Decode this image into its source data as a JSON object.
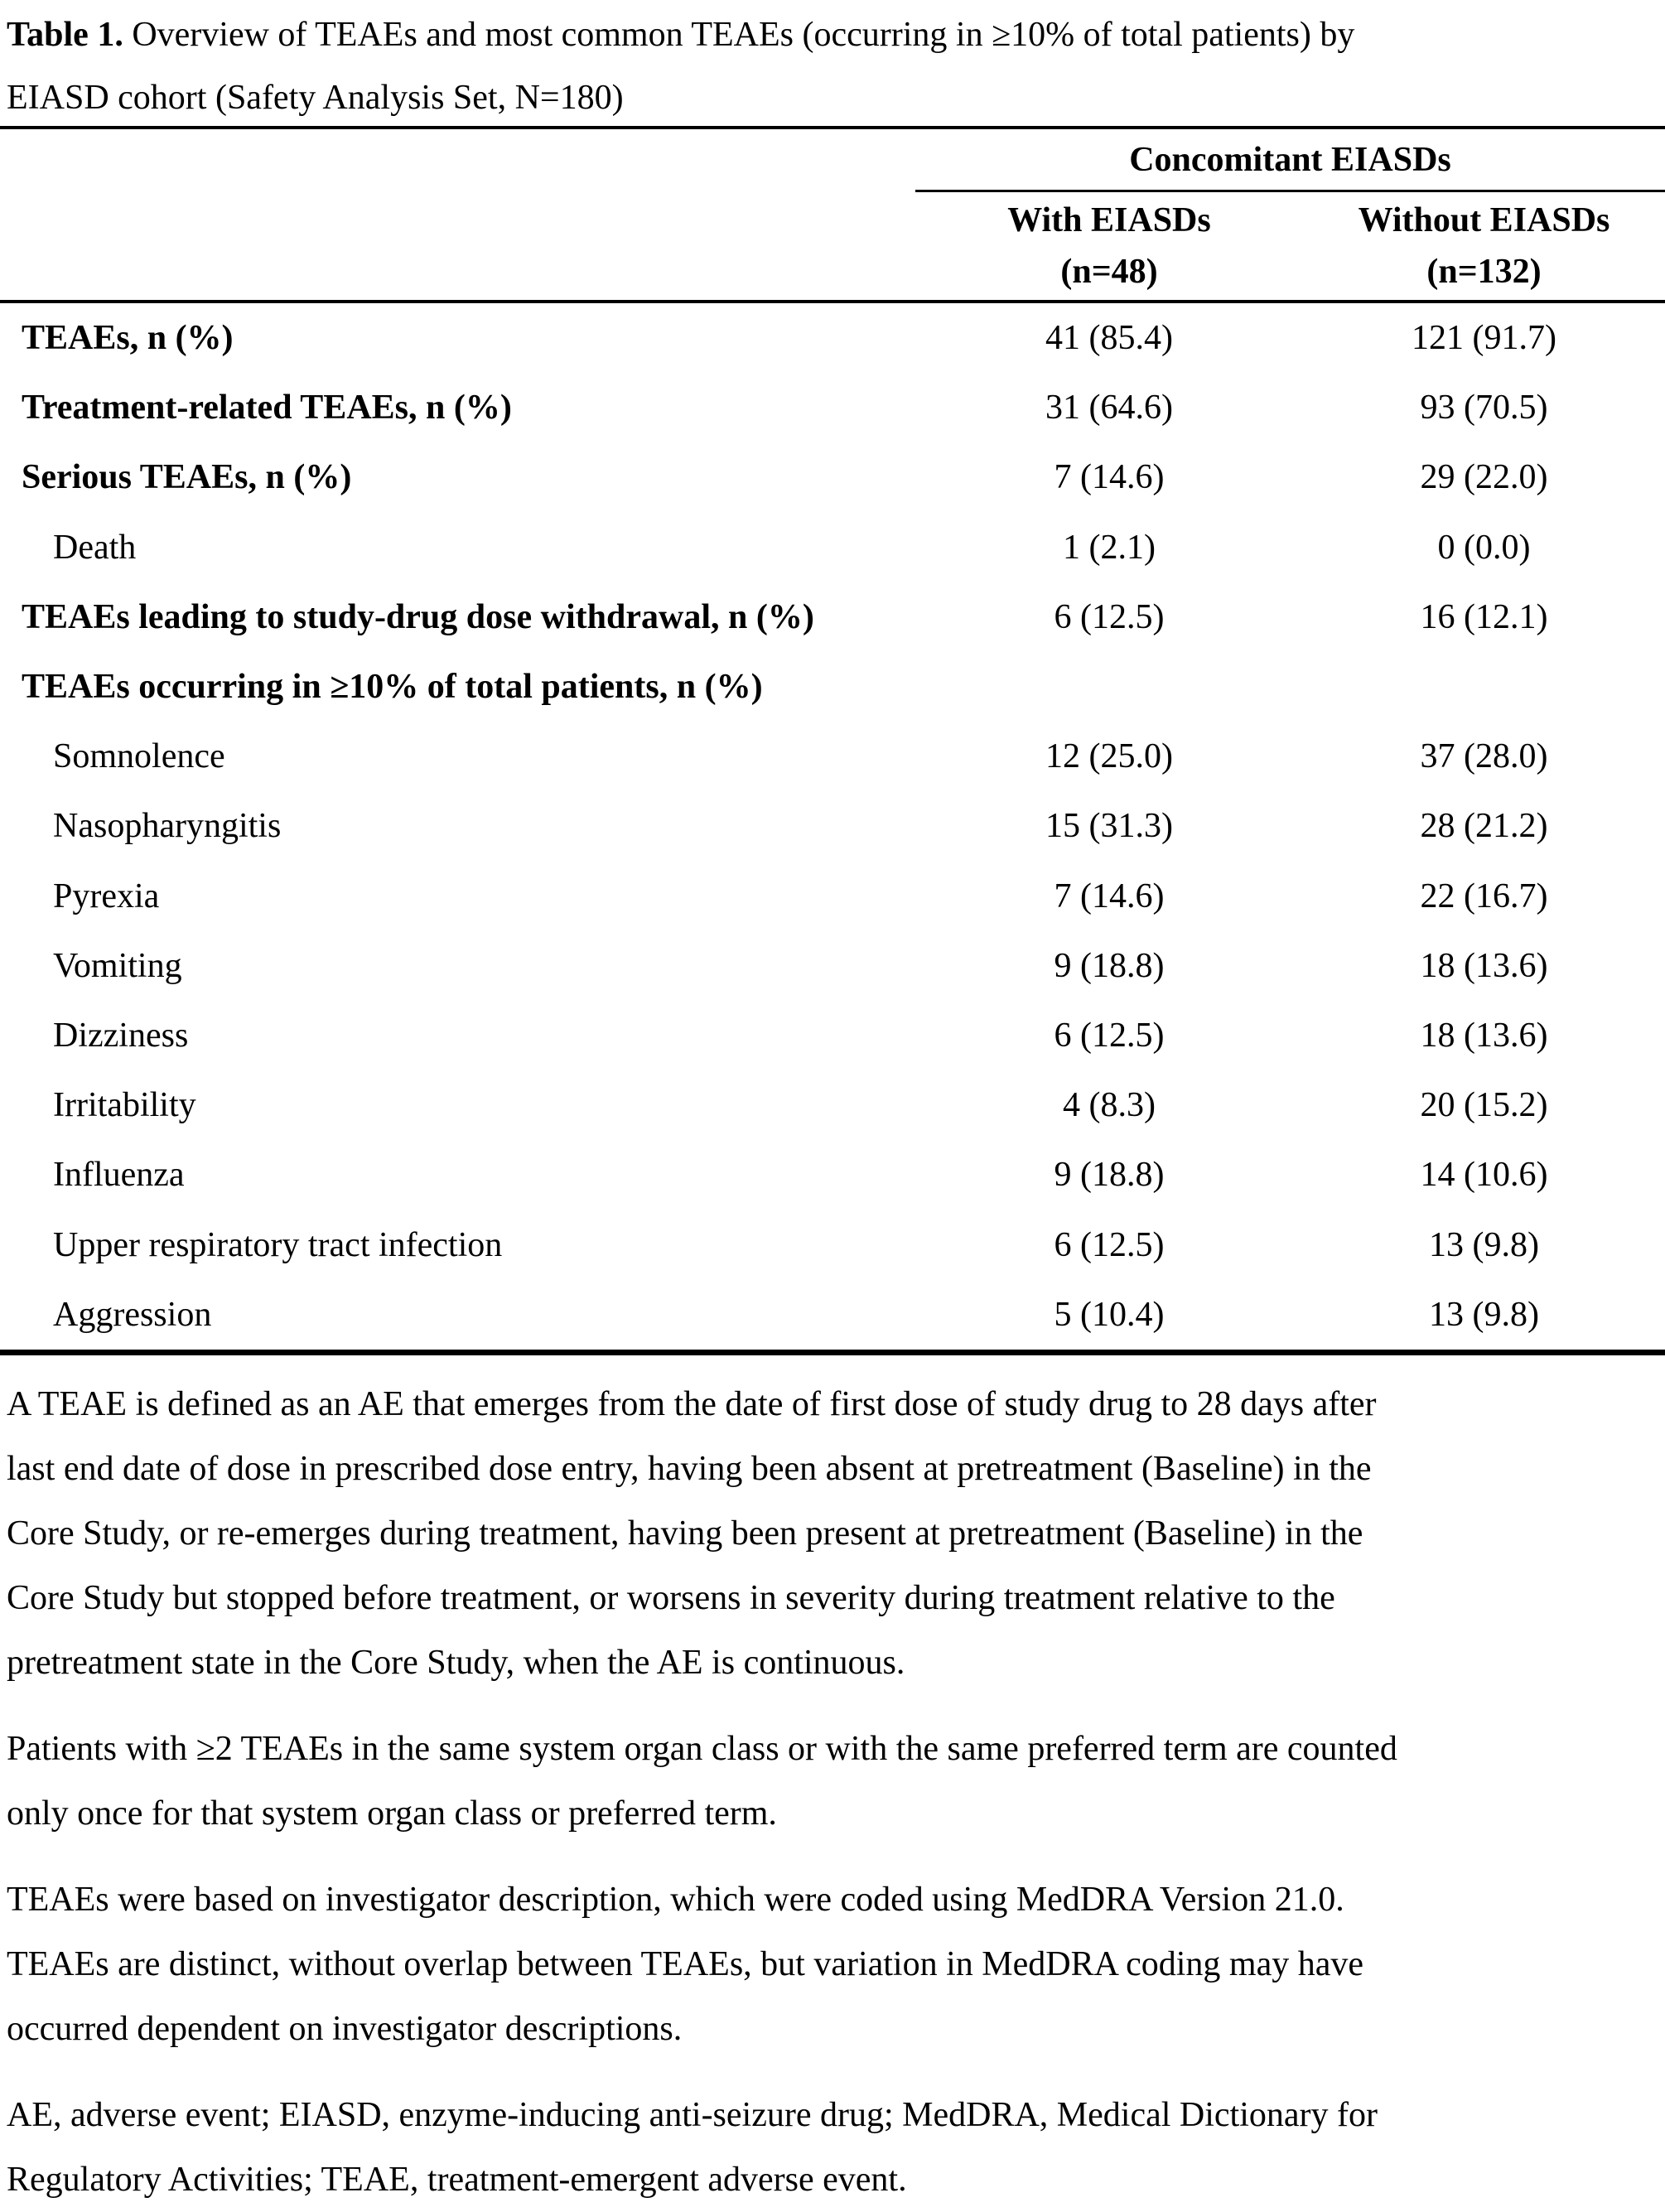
{
  "title": {
    "prefix": "Table 1.",
    "text": " Overview of TEAEs and most common TEAEs (occurring in ≥10% of total patients) by\nEIASD cohort (Safety Analysis Set, N=180)"
  },
  "table": {
    "span_header": "Concomitant EIASDs",
    "columns": [
      "With EIASDs\n(n=48)",
      "Without EIASDs\n(n=132)"
    ],
    "rows": [
      {
        "label": "TEAEs, n (%)",
        "with": "41 (85.4)",
        "without": "121 (91.7)"
      },
      {
        "label": "Treatment-related TEAEs, n (%)",
        "with": "31 (64.6)",
        "without": "93 (70.5)"
      },
      {
        "label": "Serious TEAEs, n (%)",
        "with": "7 (14.6)",
        "without": "29 (22.0)"
      },
      {
        "label": "Death",
        "with": "1 (2.1)",
        "without": "0 (0.0)"
      },
      {
        "label": "TEAEs leading to study-drug dose withdrawal, n (%)",
        "with": "6 (12.5)",
        "without": "16 (12.1)"
      },
      {
        "label": "TEAEs occurring in ≥10% of total patients, n (%)",
        "with": "",
        "without": ""
      },
      {
        "label": "Somnolence",
        "with": "12 (25.0)",
        "without": "37 (28.0)"
      },
      {
        "label": "Nasopharyngitis",
        "with": "15 (31.3)",
        "without": "28 (21.2)"
      },
      {
        "label": "Pyrexia",
        "with": "7 (14.6)",
        "without": "22 (16.7)"
      },
      {
        "label": "Vomiting",
        "with": "9 (18.8)",
        "without": "18 (13.6)"
      },
      {
        "label": "Dizziness",
        "with": "6 (12.5)",
        "without": "18 (13.6)"
      },
      {
        "label": "Irritability",
        "with": "4 (8.3)",
        "without": "20 (15.2)"
      },
      {
        "label": "Influenza",
        "with": "9 (18.8)",
        "without": "14 (10.6)"
      },
      {
        "label": "Upper respiratory tract infection",
        "with": "6 (12.5)",
        "without": "13 (9.8)"
      },
      {
        "label": "Aggression",
        "with": "5 (10.4)",
        "without": "13 (9.8)"
      }
    ]
  },
  "footnotes": [
    "A TEAE is defined as an AE that emerges from the date of first dose of study drug to 28 days after\nlast end date of dose in prescribed dose entry, having been absent at pretreatment (Baseline) in the\nCore Study, or re-emerges during treatment, having been present at pretreatment (Baseline) in the\nCore Study but stopped before treatment, or worsens in severity during treatment relative to the\npretreatment state in the Core Study, when the AE is continuous.",
    "Patients with ≥2 TEAEs in the same system organ class or with the same preferred term are counted\nonly once for that system organ class or preferred term.",
    "TEAEs were based on investigator description, which were coded using MedDRA Version 21.0.\nTEAEs are distinct, without overlap between TEAEs, but variation in MedDRA coding may have\noccurred dependent on investigator descriptions.",
    "AE, adverse event; EIASD, enzyme-inducing anti-seizure drug; MedDRA, Medical Dictionary for\nRegulatory Activities; TEAE, treatment-emergent adverse event."
  ],
  "colors": {
    "text": "#000000",
    "background": "#ffffff"
  }
}
